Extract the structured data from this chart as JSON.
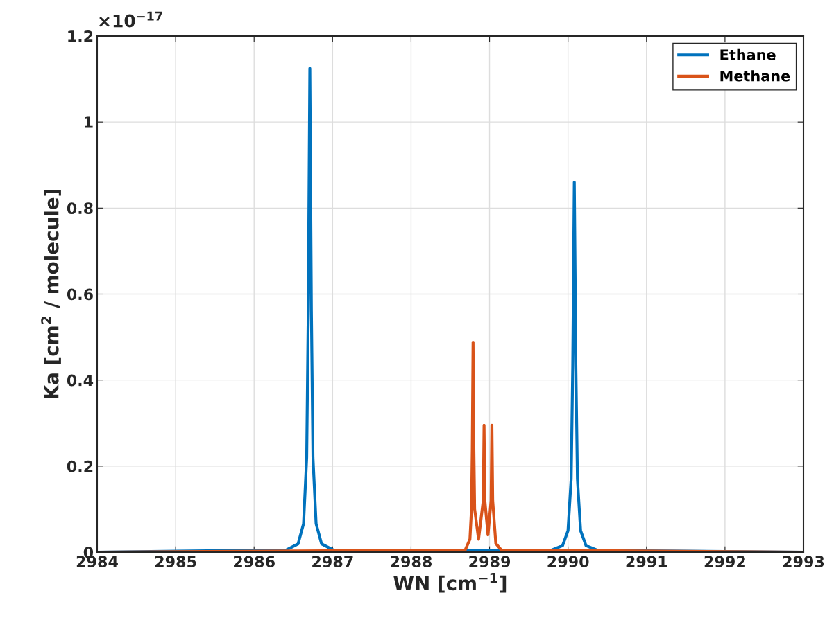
{
  "chart_data": {
    "type": "line",
    "xlabel": "WN [cm$^{−1}$]",
    "ylabel": "Ka [cm$^{2}$ / molecule]",
    "annotations": [
      "×10$^{−17}$"
    ],
    "series": [
      {
        "name": "Ethane",
        "color": "#0072bd",
        "x": [
          2984,
          2986.41,
          2986.56,
          2986.63,
          2986.67,
          2986.69,
          2986.71,
          2986.73,
          2986.75,
          2986.79,
          2986.86,
          2987.01,
          2988.9,
          2989.78,
          2989.93,
          2990.0,
          2990.04,
          2990.06,
          2990.08,
          2990.1,
          2990.12,
          2990.16,
          2990.23,
          2990.38,
          2993
        ],
        "values": [
          0,
          0.005,
          0.019,
          0.066,
          0.22,
          0.56,
          1.125,
          0.56,
          0.22,
          0.066,
          0.019,
          0.005,
          0.004,
          0.004,
          0.015,
          0.05,
          0.17,
          0.43,
          0.86,
          0.43,
          0.17,
          0.05,
          0.015,
          0.004,
          0
        ]
      },
      {
        "name": "Methane",
        "color": "#d95319",
        "x": [
          2984,
          2988.69,
          2988.75,
          2988.77,
          2988.78,
          2988.79,
          2988.8,
          2988.81,
          2988.86,
          2988.92,
          2988.93,
          2988.94,
          2988.98,
          2989.02,
          2989.03,
          2989.04,
          2989.08,
          2989.15,
          2993
        ],
        "values": [
          0,
          0.005,
          0.03,
          0.1,
          0.24,
          0.488,
          0.24,
          0.1,
          0.03,
          0.12,
          0.295,
          0.12,
          0.04,
          0.12,
          0.295,
          0.12,
          0.02,
          0.005,
          0
        ]
      }
    ],
    "xlim": [
      2984,
      2993
    ],
    "xticks": [
      2984,
      2985,
      2986,
      2987,
      2988,
      2989,
      2990,
      2991,
      2992,
      2993
    ],
    "ylim": [
      0,
      1.2
    ],
    "yticks": [
      0,
      0.2,
      0.4,
      0.6,
      0.8,
      1,
      1.2
    ],
    "grid": true,
    "legend": "top right",
    "line_style": "solid"
  }
}
